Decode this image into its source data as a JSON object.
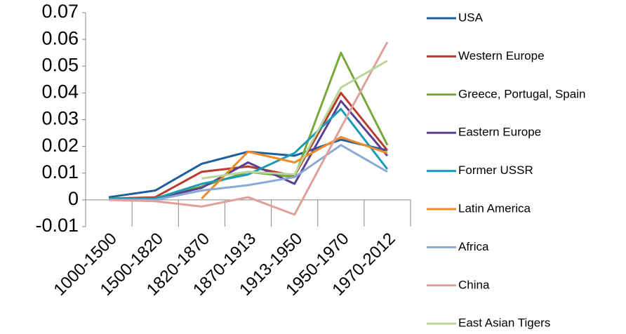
{
  "chart_data": {
    "type": "line",
    "categories": [
      "1000-1500",
      "1500-1820",
      "1820-1870",
      "1870-1913",
      "1913-1950",
      "1950-1970",
      "1970-2012"
    ],
    "ylim": [
      -0.01,
      0.07
    ],
    "yticks": [
      -0.01,
      0,
      0.01,
      0.02,
      0.03,
      0.04,
      0.05,
      0.06,
      0.07
    ],
    "series": [
      {
        "name": "USA",
        "color": "#1f5fa0",
        "values": [
          0.001,
          0.0035,
          0.0135,
          0.018,
          0.0165,
          0.0225,
          0.0185
        ]
      },
      {
        "name": "Western Europe",
        "color": "#b83c2e",
        "values": [
          0.0005,
          0.001,
          0.0105,
          0.0125,
          0.009,
          0.04,
          0.0185
        ]
      },
      {
        "name": "Greece, Portugal, Spain",
        "color": "#77a83c",
        "values": [
          0.0005,
          0.0005,
          0.005,
          0.0105,
          0.0085,
          0.055,
          0.0205
        ]
      },
      {
        "name": "Eastern Europe",
        "color": "#5b3f91",
        "values": [
          0.0005,
          0.0005,
          0.0045,
          0.014,
          0.006,
          0.037,
          0.0165
        ]
      },
      {
        "name": "Former USSR",
        "color": "#1a9bb5",
        "values": [
          0.0005,
          0.0005,
          0.006,
          0.0095,
          0.0175,
          0.034,
          0.0115
        ]
      },
      {
        "name": "Latin America",
        "color": "#f08a24",
        "values": [
          null,
          null,
          0.0005,
          0.018,
          0.014,
          0.0235,
          0.0175
        ]
      },
      {
        "name": "Africa",
        "color": "#8aa9d6",
        "values": [
          0,
          0,
          0.0035,
          0.0055,
          0.0085,
          0.0205,
          0.0105
        ]
      },
      {
        "name": "China",
        "color": "#e0a09a",
        "values": [
          0,
          -0.0005,
          -0.0025,
          0.001,
          -0.0055,
          0.027,
          0.059
        ]
      },
      {
        "name": "East Asian Tigers",
        "color": "#b8d59a",
        "values": [
          null,
          null,
          0.008,
          0.0105,
          0.0095,
          0.042,
          0.052
        ]
      }
    ]
  }
}
